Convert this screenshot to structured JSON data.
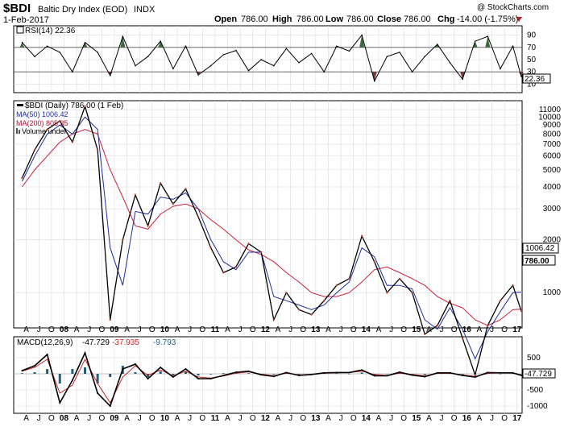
{
  "header": {
    "symbol": "$BDI",
    "name": "Baltic Dry Index (EOD)",
    "exchange": "INDX",
    "date": "1-Feb-2017",
    "watermark": "@ StockCharts.com",
    "open_label": "Open",
    "open": "786.00",
    "high_label": "High",
    "high": "786.00",
    "low_label": "Low",
    "low": "786.00",
    "close_label": "Close",
    "close": "786.00",
    "chg_label": "Chg",
    "chg": "-14.00 (-1.75%)"
  },
  "colors": {
    "price": "#000000",
    "ma50": "#1f2d9c",
    "ma200": "#cc1f3a",
    "ma200_text": "#b01a3c",
    "macd": "#000000",
    "signal": "#c62828",
    "rsi_over": "#3e6b3e",
    "rsi_under": "#7a3b3b",
    "histogram": "#1f5f7a",
    "accent_red": "#b22222"
  },
  "rsi_panel": {
    "legend": "RSI(14) 22.36",
    "current_value_box": "22.36",
    "tick_labels": [
      "90",
      "70",
      "50",
      "30",
      "10"
    ],
    "levels": [
      90,
      70,
      50,
      30,
      10
    ],
    "reference_lines": [
      70,
      30
    ]
  },
  "price_panel": {
    "legend_price": "$BDI (Daily) 786.00 (1 Feb)",
    "legend_ma50": "MA(50) 1006.42",
    "legend_ma200": "MA(200) 805.35",
    "legend_volume": "Volume undef",
    "label_ma50_box": "1006.42",
    "label_close_box": "786.00",
    "tick_labels": [
      "11000",
      "10000",
      "9000",
      "8000",
      "7000",
      "6000",
      "5000",
      "4000",
      "3000",
      "2000",
      "1000"
    ],
    "tick_values": [
      11000,
      10000,
      9000,
      8000,
      7000,
      6000,
      5000,
      4000,
      3000,
      2000,
      1000
    ]
  },
  "macd_panel": {
    "legend_label": "MACD(12,26,9)",
    "legend_macd": "-47.729",
    "legend_signal": "-37.935",
    "legend_hist": "-9.793",
    "current_value_box": "-47.729",
    "tick_labels": [
      "500",
      "0",
      "-500",
      "-1000"
    ],
    "tick_values": [
      500,
      0,
      -500,
      -1000
    ]
  },
  "time_axis_labels": [
    "A",
    "J",
    "O",
    "08",
    "A",
    "J",
    "O",
    "09",
    "A",
    "J",
    "O",
    "10",
    "A",
    "J",
    "O",
    "11",
    "A",
    "J",
    "O",
    "12",
    "A",
    "J",
    "O",
    "13",
    "A",
    "J",
    "O",
    "14",
    "A",
    "J",
    "O",
    "15",
    "A",
    "J",
    "O",
    "16",
    "A",
    "J",
    "O",
    "17"
  ],
  "chart_data": [
    {
      "type": "line",
      "title": "RSI(14) 22.36",
      "ylim": [
        0,
        100
      ],
      "series": [
        {
          "name": "RSI(14)",
          "x": [
            "2007-03",
            "2007-06",
            "2007-09",
            "2007-12",
            "2008-03",
            "2008-06",
            "2008-09",
            "2008-12",
            "2009-03",
            "2009-06",
            "2009-09",
            "2009-12",
            "2010-03",
            "2010-06",
            "2010-09",
            "2010-12",
            "2011-03",
            "2011-06",
            "2011-09",
            "2011-12",
            "2012-03",
            "2012-06",
            "2012-09",
            "2012-12",
            "2013-03",
            "2013-06",
            "2013-09",
            "2013-12",
            "2014-03",
            "2014-06",
            "2014-09",
            "2014-12",
            "2015-03",
            "2015-06",
            "2015-09",
            "2015-12",
            "2016-03",
            "2016-06",
            "2016-09",
            "2016-12",
            "2017-02"
          ],
          "values": [
            78,
            55,
            72,
            62,
            30,
            78,
            62,
            24,
            88,
            40,
            55,
            80,
            35,
            72,
            25,
            40,
            58,
            65,
            32,
            50,
            40,
            68,
            45,
            60,
            30,
            72,
            64,
            90,
            15,
            55,
            62,
            30,
            55,
            75,
            45,
            18,
            80,
            88,
            35,
            72,
            22.36
          ]
        }
      ]
    },
    {
      "type": "line",
      "title": "$BDI (Daily) 786.00 (1 Feb)",
      "ylim": [
        650,
        12000
      ],
      "y_scale": "log",
      "series": [
        {
          "name": "$BDI",
          "x": [
            "2007-03",
            "2007-06",
            "2007-09",
            "2007-12",
            "2008-03",
            "2008-06",
            "2008-09",
            "2008-12",
            "2009-03",
            "2009-06",
            "2009-09",
            "2009-12",
            "2010-03",
            "2010-06",
            "2010-09",
            "2010-12",
            "2011-03",
            "2011-06",
            "2011-09",
            "2011-12",
            "2012-03",
            "2012-06",
            "2012-09",
            "2012-12",
            "2013-03",
            "2013-06",
            "2013-09",
            "2013-12",
            "2014-03",
            "2014-06",
            "2014-09",
            "2014-12",
            "2015-03",
            "2015-06",
            "2015-09",
            "2015-12",
            "2016-03",
            "2016-06",
            "2016-09",
            "2016-12",
            "2017-02"
          ],
          "values": [
            4500,
            6500,
            8500,
            9500,
            7200,
            11500,
            6500,
            700,
            2000,
            3600,
            2400,
            4200,
            3200,
            3900,
            2700,
            1800,
            1300,
            1400,
            1900,
            1700,
            700,
            1000,
            800,
            750,
            900,
            1100,
            1200,
            2100,
            1500,
            1000,
            1200,
            1000,
            580,
            650,
            900,
            550,
            340,
            650,
            900,
            1100,
            786
          ]
        },
        {
          "name": "MA(50)",
          "x": [
            "2007-03",
            "2007-06",
            "2007-09",
            "2007-12",
            "2008-03",
            "2008-06",
            "2008-09",
            "2008-12",
            "2009-03",
            "2009-06",
            "2009-09",
            "2009-12",
            "2010-03",
            "2010-06",
            "2010-09",
            "2010-12",
            "2011-03",
            "2011-06",
            "2011-09",
            "2011-12",
            "2012-03",
            "2012-06",
            "2012-09",
            "2012-12",
            "2013-03",
            "2013-06",
            "2013-09",
            "2013-12",
            "2014-03",
            "2014-06",
            "2014-09",
            "2014-12",
            "2015-03",
            "2015-06",
            "2015-09",
            "2015-12",
            "2016-03",
            "2016-06",
            "2016-09",
            "2016-12",
            "2017-02"
          ],
          "values": [
            4300,
            6000,
            8000,
            9000,
            8000,
            10000,
            8500,
            1800,
            1100,
            2900,
            2800,
            3500,
            3400,
            3700,
            3000,
            2000,
            1500,
            1350,
            1700,
            1700,
            950,
            900,
            850,
            800,
            850,
            1000,
            1150,
            1800,
            1600,
            1100,
            1100,
            1050,
            700,
            620,
            820,
            620,
            420,
            600,
            780,
            1000,
            1006.42
          ]
        },
        {
          "name": "MA(200)",
          "x": [
            "2007-03",
            "2007-06",
            "2007-09",
            "2007-12",
            "2008-03",
            "2008-06",
            "2008-09",
            "2008-12",
            "2009-03",
            "2009-06",
            "2009-09",
            "2009-12",
            "2010-03",
            "2010-06",
            "2010-09",
            "2010-12",
            "2011-03",
            "2011-06",
            "2011-09",
            "2011-12",
            "2012-03",
            "2012-06",
            "2012-09",
            "2012-12",
            "2013-03",
            "2013-06",
            "2013-09",
            "2013-12",
            "2014-03",
            "2014-06",
            "2014-09",
            "2014-12",
            "2015-03",
            "2015-06",
            "2015-09",
            "2015-12",
            "2016-03",
            "2016-06",
            "2016-09",
            "2016-12",
            "2017-02"
          ],
          "values": [
            4000,
            5000,
            6000,
            7200,
            8000,
            8500,
            8000,
            5000,
            3500,
            2400,
            2300,
            2800,
            3100,
            3200,
            3000,
            2600,
            2300,
            2000,
            1750,
            1650,
            1500,
            1300,
            1150,
            1000,
            950,
            950,
            1000,
            1150,
            1350,
            1400,
            1300,
            1200,
            1100,
            950,
            870,
            820,
            700,
            650,
            700,
            800,
            805.35
          ]
        }
      ]
    },
    {
      "type": "line",
      "title": "MACD(12,26,9) -47.729, -37.935, -9.793",
      "ylim": [
        -1150,
        800
      ],
      "series": [
        {
          "name": "MACD",
          "x": [
            "2007-03",
            "2007-06",
            "2007-09",
            "2007-12",
            "2008-03",
            "2008-06",
            "2008-09",
            "2008-12",
            "2009-03",
            "2009-06",
            "2009-09",
            "2009-12",
            "2010-03",
            "2010-06",
            "2010-09",
            "2010-12",
            "2011-03",
            "2011-06",
            "2011-09",
            "2011-12",
            "2012-03",
            "2012-06",
            "2012-09",
            "2012-12",
            "2013-03",
            "2013-06",
            "2013-09",
            "2013-12",
            "2014-03",
            "2014-06",
            "2014-09",
            "2014-12",
            "2015-03",
            "2015-06",
            "2015-09",
            "2015-12",
            "2016-03",
            "2016-06",
            "2016-09",
            "2016-12",
            "2017-02"
          ],
          "values": [
            100,
            250,
            600,
            -900,
            -200,
            650,
            -600,
            -1000,
            150,
            300,
            -150,
            200,
            -100,
            150,
            -150,
            -150,
            -50,
            50,
            80,
            -30,
            -80,
            40,
            -50,
            -20,
            30,
            40,
            40,
            120,
            -60,
            -60,
            50,
            -40,
            -90,
            30,
            30,
            -50,
            -100,
            40,
            30,
            30,
            -47.729
          ]
        },
        {
          "name": "Signal",
          "x": [
            "2007-03",
            "2007-06",
            "2007-09",
            "2007-12",
            "2008-03",
            "2008-06",
            "2008-09",
            "2008-12",
            "2009-03",
            "2009-06",
            "2009-09",
            "2009-12",
            "2010-03",
            "2010-06",
            "2010-09",
            "2010-12",
            "2011-03",
            "2011-06",
            "2011-09",
            "2011-12",
            "2012-03",
            "2012-06",
            "2012-09",
            "2012-12",
            "2013-03",
            "2013-06",
            "2013-09",
            "2013-12",
            "2014-03",
            "2014-06",
            "2014-09",
            "2014-12",
            "2015-03",
            "2015-06",
            "2015-09",
            "2015-12",
            "2016-03",
            "2016-06",
            "2016-09",
            "2016-12",
            "2017-02"
          ],
          "values": [
            80,
            200,
            450,
            -600,
            -350,
            450,
            -300,
            -900,
            -100,
            250,
            -50,
            120,
            -60,
            80,
            -100,
            -130,
            -70,
            20,
            60,
            -10,
            -60,
            20,
            -30,
            -20,
            20,
            30,
            40,
            80,
            -20,
            -50,
            20,
            -20,
            -60,
            10,
            20,
            -30,
            -80,
            10,
            30,
            20,
            -37.935
          ]
        }
      ]
    }
  ]
}
